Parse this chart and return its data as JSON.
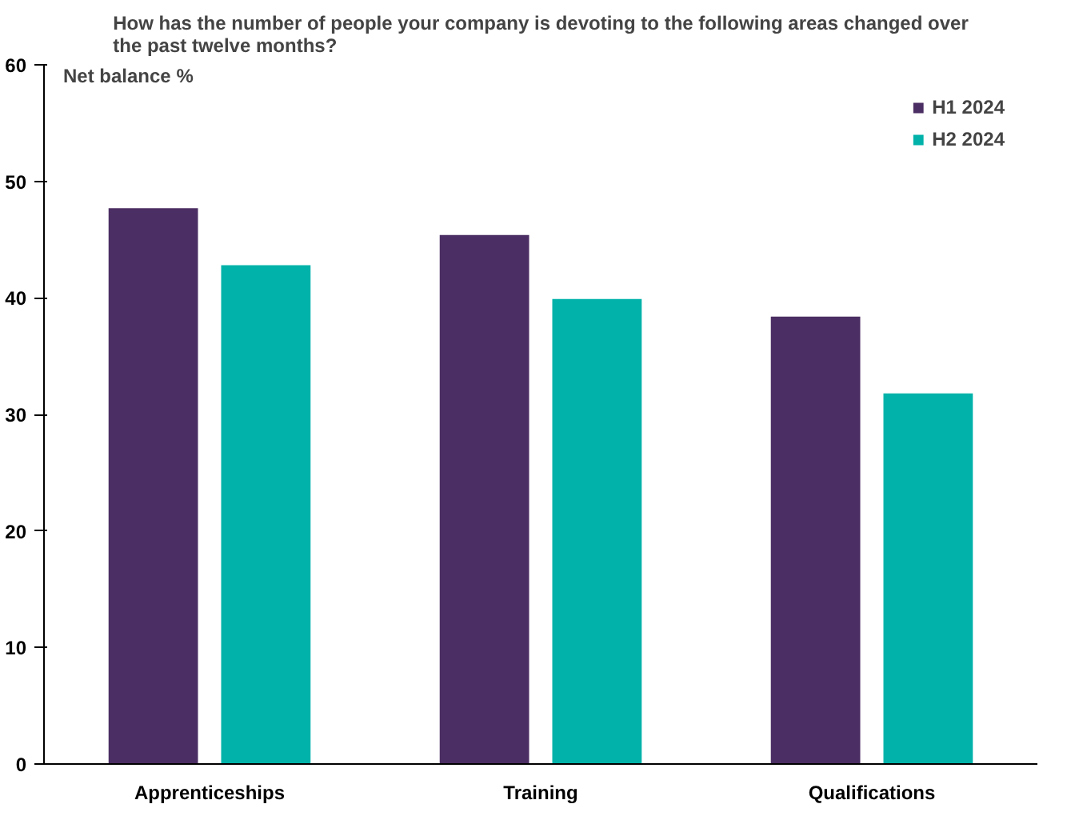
{
  "chart_data": {
    "type": "bar",
    "title": "How has the number of people your company is devoting to the following areas changed over the past twelve months?",
    "ylabel": "Net balance %",
    "categories": [
      "Apprenticeships",
      "Training",
      "Qualifications"
    ],
    "series": [
      {
        "name": "H1 2024",
        "color": "#4b2e63",
        "values": [
          47.7,
          45.4,
          38.4
        ]
      },
      {
        "name": "H2 2024",
        "color": "#00b2a9",
        "values": [
          42.8,
          39.9,
          31.8
        ]
      }
    ],
    "ylim": [
      0,
      60
    ],
    "yticks": [
      0,
      10,
      20,
      30,
      40,
      50,
      60
    ],
    "grid": false,
    "legend": "top right"
  }
}
